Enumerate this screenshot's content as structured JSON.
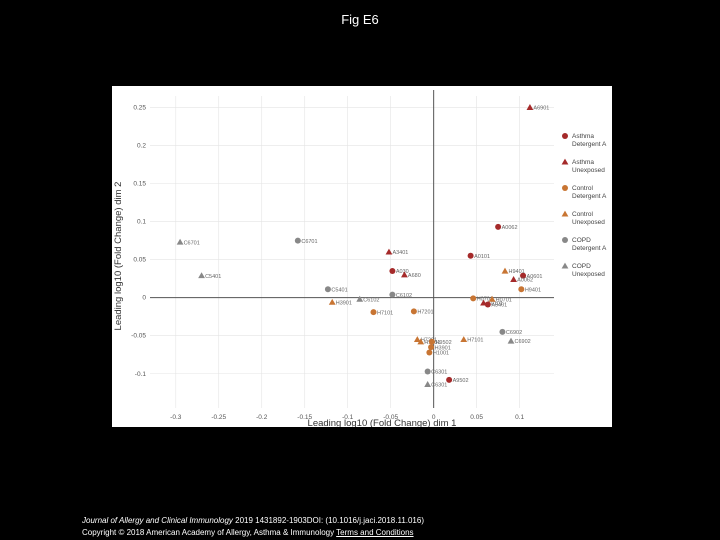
{
  "title": "Fig E6",
  "footer": {
    "journal": "Journal of Allergy and Clinical Immunology",
    "citation": " 2019 1431892-1903DOI: (10.1016/j.jaci.2018.11.016)",
    "copyright": "Copyright © 2018 American Academy of Allergy, Asthma & Immunology",
    "terms": "Terms and Conditions"
  },
  "colors": {
    "asthma": "#a52a2a",
    "control": "#c87533",
    "copd": "#888888",
    "axis": "#555555",
    "grid": "#e4e4e4"
  },
  "chart_data": {
    "type": "scatter",
    "xlabel": "Leading log10 (Fold Change) dim 1",
    "ylabel": "Leading log10 (Fold Change) dim 2",
    "xlim": [
      -0.33,
      0.14
    ],
    "ylim": [
      -0.145,
      0.265
    ],
    "xticks": [
      -0.3,
      -0.25,
      -0.2,
      -0.15,
      -0.1,
      -0.05,
      0,
      0.05,
      0.1
    ],
    "xtick_labels": [
      "-0.3",
      "-0.25",
      "-0.2",
      "-0.15",
      "-0.1",
      "-0.05",
      "0",
      "0.05",
      "0.1"
    ],
    "yticks": [
      -0.1,
      -0.05,
      0,
      0.05,
      0.1,
      0.15,
      0.2,
      0.25
    ],
    "ytick_labels": [
      "-0.1",
      "-0.05",
      "0",
      "0.05",
      "0.1",
      "0.15",
      "0.2",
      "0.25"
    ],
    "legend": [
      {
        "label": [
          "Asthma",
          "Detergent A"
        ],
        "group": "asthma",
        "shape": "circle"
      },
      {
        "label": [
          "Asthma",
          "Unexposed"
        ],
        "group": "asthma",
        "shape": "triangle"
      },
      {
        "label": [
          "Control",
          "Detergent A"
        ],
        "group": "control",
        "shape": "circle"
      },
      {
        "label": [
          "Control",
          "Unexposed"
        ],
        "group": "control",
        "shape": "triangle"
      },
      {
        "label": [
          "COPD",
          "Detergent A"
        ],
        "group": "copd",
        "shape": "circle"
      },
      {
        "label": [
          "COPD",
          "Unexposed"
        ],
        "group": "copd",
        "shape": "triangle"
      }
    ],
    "points": [
      {
        "x": 0.112,
        "y": 0.25,
        "label": "A6901",
        "group": "asthma",
        "shape": "triangle"
      },
      {
        "x": 0.075,
        "y": 0.093,
        "label": "A0062",
        "group": "asthma",
        "shape": "circle"
      },
      {
        "x": 0.043,
        "y": 0.055,
        "label": "A0101",
        "group": "asthma",
        "shape": "circle"
      },
      {
        "x": -0.052,
        "y": 0.06,
        "label": "A3401",
        "group": "asthma",
        "shape": "triangle"
      },
      {
        "x": -0.048,
        "y": 0.035,
        "label": "A030",
        "group": "asthma",
        "shape": "circle"
      },
      {
        "x": -0.034,
        "y": 0.03,
        "label": "A680",
        "group": "asthma",
        "shape": "triangle"
      },
      {
        "x": 0.104,
        "y": 0.029,
        "label": "A0601",
        "group": "asthma",
        "shape": "circle"
      },
      {
        "x": 0.093,
        "y": 0.024,
        "label": "A0062",
        "group": "asthma",
        "shape": "triangle"
      },
      {
        "x": 0.058,
        "y": -0.007,
        "label": "A0101",
        "group": "asthma",
        "shape": "triangle"
      },
      {
        "x": 0.063,
        "y": -0.009,
        "label": "A3401",
        "group": "asthma",
        "shape": "circle"
      },
      {
        "x": 0.018,
        "y": -0.108,
        "label": "A9502",
        "group": "asthma",
        "shape": "circle"
      },
      {
        "x": -0.158,
        "y": 0.075,
        "label": "C6701",
        "group": "copd",
        "shape": "circle"
      },
      {
        "x": -0.295,
        "y": 0.073,
        "label": "C6701",
        "group": "copd",
        "shape": "triangle"
      },
      {
        "x": -0.27,
        "y": 0.029,
        "label": "C5401",
        "group": "copd",
        "shape": "triangle"
      },
      {
        "x": -0.123,
        "y": 0.011,
        "label": "C5401",
        "group": "copd",
        "shape": "circle"
      },
      {
        "x": -0.048,
        "y": 0.004,
        "label": "C6102",
        "group": "copd",
        "shape": "circle"
      },
      {
        "x": -0.086,
        "y": -0.002,
        "label": "C6102",
        "group": "copd",
        "shape": "triangle"
      },
      {
        "x": 0.08,
        "y": -0.045,
        "label": "C6902",
        "group": "copd",
        "shape": "circle"
      },
      {
        "x": 0.09,
        "y": -0.057,
        "label": "C6902",
        "group": "copd",
        "shape": "triangle"
      },
      {
        "x": -0.007,
        "y": -0.097,
        "label": "C6301",
        "group": "copd",
        "shape": "circle"
      },
      {
        "x": -0.007,
        "y": -0.114,
        "label": "C6301",
        "group": "copd",
        "shape": "triangle"
      },
      {
        "x": 0.083,
        "y": 0.035,
        "label": "H9401",
        "group": "control",
        "shape": "triangle"
      },
      {
        "x": 0.102,
        "y": 0.011,
        "label": "H9401",
        "group": "control",
        "shape": "circle"
      },
      {
        "x": 0.046,
        "y": -0.001,
        "label": "H0701",
        "group": "control",
        "shape": "circle"
      },
      {
        "x": 0.068,
        "y": -0.002,
        "label": "H0701",
        "group": "control",
        "shape": "triangle"
      },
      {
        "x": -0.118,
        "y": -0.006,
        "label": "H3901",
        "group": "control",
        "shape": "triangle"
      },
      {
        "x": -0.07,
        "y": -0.019,
        "label": "H7101",
        "group": "control",
        "shape": "circle"
      },
      {
        "x": -0.023,
        "y": -0.018,
        "label": "H7201",
        "group": "control",
        "shape": "circle"
      },
      {
        "x": 0.035,
        "y": -0.055,
        "label": "H7101",
        "group": "control",
        "shape": "triangle"
      },
      {
        "x": -0.019,
        "y": -0.055,
        "label": "H7201",
        "group": "control",
        "shape": "triangle"
      },
      {
        "x": -0.015,
        "y": -0.058,
        "label": "H1001",
        "group": "control",
        "shape": "triangle"
      },
      {
        "x": -0.002,
        "y": -0.058,
        "label": "H9502",
        "group": "control",
        "shape": "circle"
      },
      {
        "x": -0.003,
        "y": -0.065,
        "label": "H3901",
        "group": "control",
        "shape": "circle"
      },
      {
        "x": -0.005,
        "y": -0.072,
        "label": "H1001",
        "group": "control",
        "shape": "circle"
      }
    ]
  }
}
